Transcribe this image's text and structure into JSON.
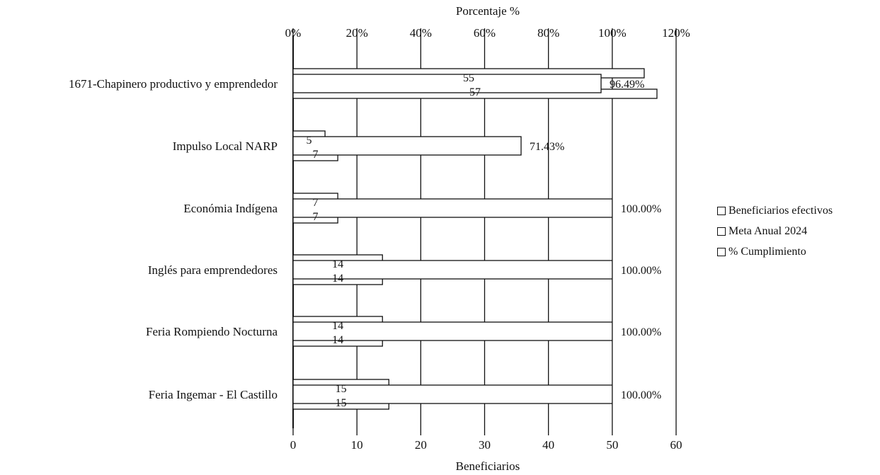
{
  "chart_data": {
    "type": "bar",
    "orientation": "horizontal",
    "title": "",
    "xlabel_bottom": "Beneficiarios",
    "xlabel_top": "Porcentaje %",
    "categories": [
      "1671-Chapinero productivo y emprendedor",
      "Impulso Local NARP",
      "Económia Indígena",
      "Inglés para emprendedores",
      "Feria Rompiendo Nocturna",
      "Feria Ingemar - El Castillo"
    ],
    "series": [
      {
        "name": "Beneficiarios efectivos",
        "axis": "bottom",
        "values": [
          55,
          5,
          7,
          14,
          14,
          15
        ]
      },
      {
        "name": "Meta Anual 2024",
        "axis": "bottom",
        "values": [
          57,
          7,
          7,
          14,
          14,
          15
        ]
      },
      {
        "name": "% Cumplimiento",
        "axis": "top",
        "values": [
          96.49,
          71.43,
          100.0,
          100.0,
          100.0,
          100.0
        ],
        "labels": [
          "96.49%",
          "71.43%",
          "100.00%",
          "100.00%",
          "100.00%",
          "100.00%"
        ]
      }
    ],
    "bottom_axis": {
      "range": [
        0,
        60
      ],
      "ticks": [
        "0",
        "10",
        "20",
        "30",
        "40",
        "50",
        "60"
      ]
    },
    "top_axis": {
      "range": [
        0,
        120
      ],
      "ticks": [
        "0%",
        "20%",
        "40%",
        "60%",
        "80%",
        "100%",
        "120%"
      ]
    },
    "grid": true,
    "legend_position": "right"
  }
}
